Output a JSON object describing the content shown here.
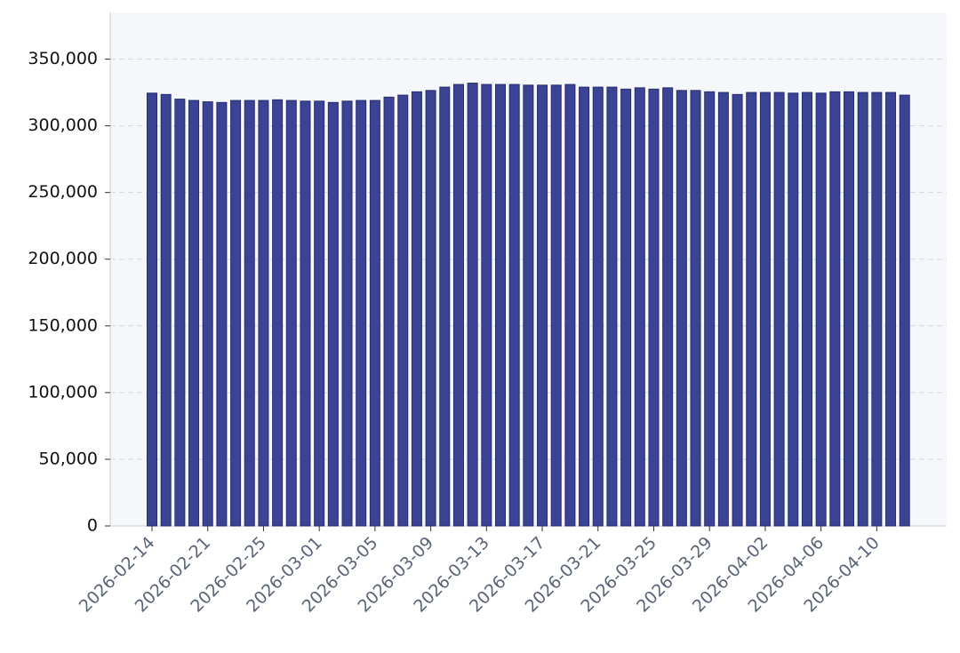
{
  "chart_data": {
    "type": "bar",
    "categories": [
      "2026-02-14",
      null,
      null,
      null,
      "2026-02-21",
      null,
      null,
      null,
      "2026-02-25",
      null,
      null,
      null,
      "2026-03-01",
      null,
      null,
      null,
      "2026-03-05",
      null,
      null,
      null,
      "2026-03-09",
      null,
      null,
      null,
      "2026-03-13",
      null,
      null,
      null,
      "2026-03-17",
      null,
      null,
      null,
      "2026-03-21",
      null,
      null,
      null,
      "2026-03-25",
      null,
      null,
      null,
      "2026-03-29",
      null,
      null,
      null,
      "2026-04-02",
      null,
      null,
      null,
      "2026-04-06",
      null,
      null,
      null,
      "2026-04-10",
      null,
      null
    ],
    "values": [
      324500,
      323500,
      320000,
      319000,
      318000,
      317500,
      319000,
      319000,
      319000,
      319500,
      319000,
      318500,
      318500,
      317500,
      318500,
      319000,
      319000,
      321500,
      323000,
      325500,
      326500,
      329000,
      331000,
      332000,
      331000,
      331000,
      331000,
      330500,
      330500,
      330500,
      331000,
      329000,
      329000,
      329000,
      327500,
      328500,
      327500,
      328500,
      326500,
      326500,
      325500,
      325000,
      323500,
      325000,
      325000,
      325000,
      324500,
      325000,
      324500,
      325500,
      325500,
      325000,
      325000,
      325000,
      323000
    ],
    "color": "#3b4494",
    "ylim": [
      0,
      385000
    ],
    "yticks": [
      0,
      {
        "value": 50000,
        "label": "50,000"
      },
      {
        "value": 100000,
        "label": "100,000"
      },
      {
        "value": 150000,
        "label": "150,000"
      },
      {
        "value": 200000,
        "label": "200,000"
      },
      {
        "value": 250000,
        "label": "250,000"
      },
      {
        "value": 300000,
        "label": "300,000"
      },
      {
        "value": 350000,
        "label": "350,000"
      }
    ],
    "grid": true
  }
}
